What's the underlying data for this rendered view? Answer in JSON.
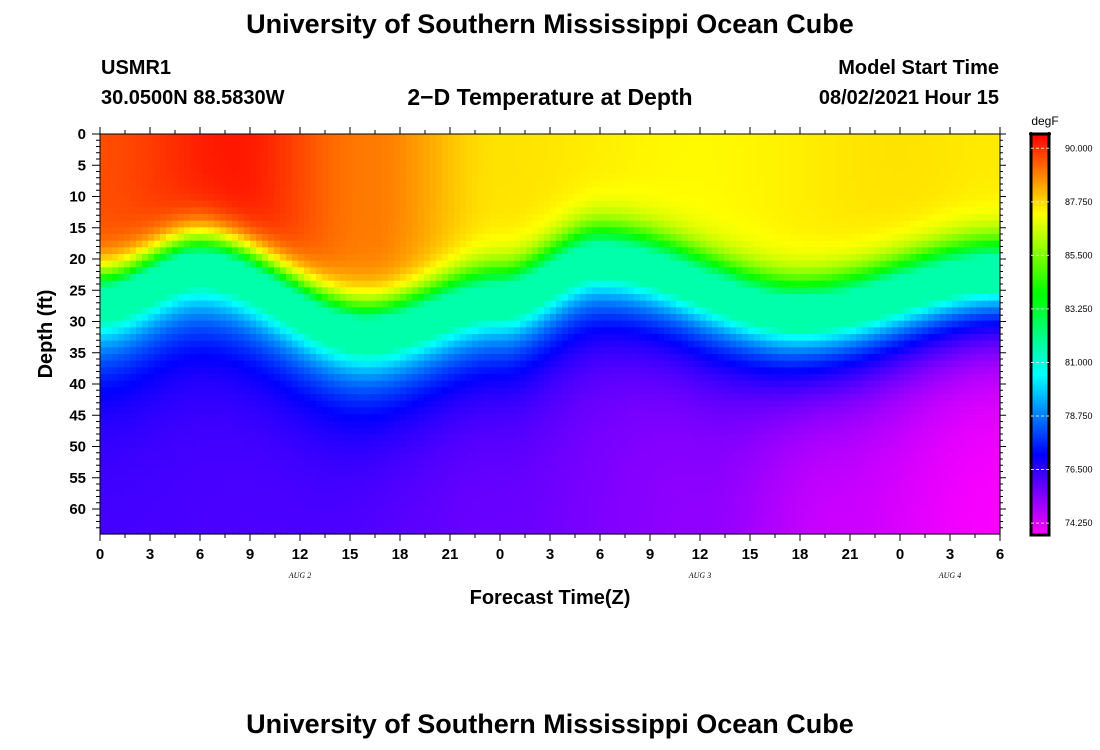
{
  "header": {
    "title_top": "University of Southern Mississippi Ocean Cube",
    "title_bottom": "University of Southern Mississippi Ocean Cube",
    "station_id": "USMR1",
    "station_coords": "30.0500N  88.5830W",
    "chart_title": "2−D Temperature at Depth",
    "model_start_label": "Model Start Time",
    "model_start_value": "08/02/2021 Hour 15"
  },
  "chart_data": {
    "type": "heatmap",
    "title": "2−D Temperature at Depth",
    "xlabel": "Forecast Time(Z)",
    "ylabel": "Depth (ft)",
    "x_tick_labels": [
      "0",
      "3",
      "6",
      "9",
      "12",
      "15",
      "18",
      "21",
      "0",
      "3",
      "6",
      "9",
      "12",
      "15",
      "18",
      "21",
      "0",
      "3",
      "6"
    ],
    "x_range_hours": [
      0,
      54
    ],
    "date_labels": [
      {
        "label": "AUG 2",
        "hour": 12
      },
      {
        "label": "AUG 3",
        "hour": 36
      },
      {
        "label": "AUG 4",
        "hour": 51
      }
    ],
    "y_tick_labels": [
      "0",
      "5",
      "10",
      "15",
      "20",
      "25",
      "30",
      "35",
      "40",
      "45",
      "50",
      "55",
      "60"
    ],
    "y_range_ft": [
      0,
      64
    ],
    "colorbar": {
      "unit": "degF",
      "min": 73.75,
      "max": 90.6,
      "tick_values": [
        90.0,
        87.75,
        85.5,
        83.25,
        81.0,
        78.75,
        76.5,
        74.25
      ],
      "tick_labels": [
        "90.000",
        "87.750",
        "85.500",
        "83.250",
        "81.000",
        "78.750",
        "76.500",
        "74.250"
      ],
      "colors": [
        "#ff00ff",
        "#8000ff",
        "#0000ff",
        "#0080ff",
        "#00ffff",
        "#00ff80",
        "#00ff00",
        "#80ff00",
        "#ffff00",
        "#ff8000",
        "#ff0000"
      ]
    },
    "thermocline_depth_ft": [
      {
        "hour": 0,
        "depth": 30
      },
      {
        "hour": 6,
        "depth": 24.5
      },
      {
        "hour": 16,
        "depth": 35
      },
      {
        "hour": 24,
        "depth": 29.5
      },
      {
        "hour": 30,
        "depth": 23
      },
      {
        "hour": 42,
        "depth": 31.5
      },
      {
        "hour": 54,
        "depth": 25
      }
    ],
    "surface_temp_degF": [
      {
        "hour": 0,
        "temp": 89.6
      },
      {
        "hour": 8,
        "temp": 90.3
      },
      {
        "hour": 16,
        "temp": 89.0
      },
      {
        "hour": 24,
        "temp": 87.6
      },
      {
        "hour": 36,
        "temp": 87.3
      },
      {
        "hour": 48,
        "temp": 87.6
      },
      {
        "hour": 54,
        "temp": 87.5
      }
    ],
    "bottom_temp_degF": [
      {
        "hour": 0,
        "temp": 76.2
      },
      {
        "hour": 12,
        "temp": 76.1
      },
      {
        "hour": 24,
        "temp": 75.7
      },
      {
        "hour": 36,
        "temp": 75.2
      },
      {
        "hour": 44,
        "temp": 74.4
      },
      {
        "hour": 54,
        "temp": 73.8
      }
    ]
  }
}
